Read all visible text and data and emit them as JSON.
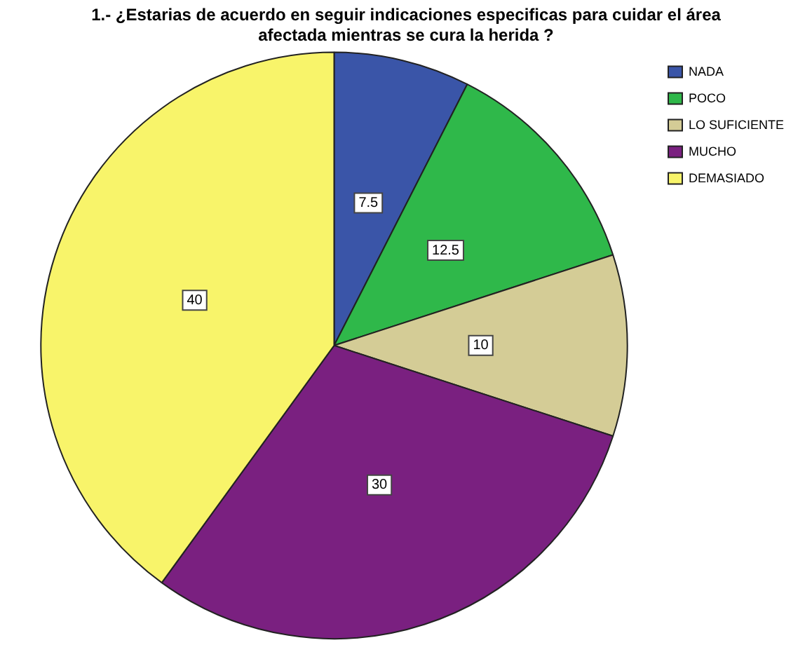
{
  "chart_data": {
    "type": "pie",
    "title": "1.- ¿Estarias de acuerdo en seguir indicaciones especificas para cuidar el área afectada mientras se cura la herida ?",
    "categories": [
      "NADA",
      "POCO",
      "LO SUFICIENTE",
      "MUCHO",
      "DEMASIADO"
    ],
    "values": [
      7.5,
      12.5,
      10,
      30,
      40
    ],
    "colors": [
      "#3a55a8",
      "#2fb84a",
      "#d4cc96",
      "#7a2080",
      "#f8f46a"
    ],
    "data_labels": true,
    "legend": "top right"
  }
}
